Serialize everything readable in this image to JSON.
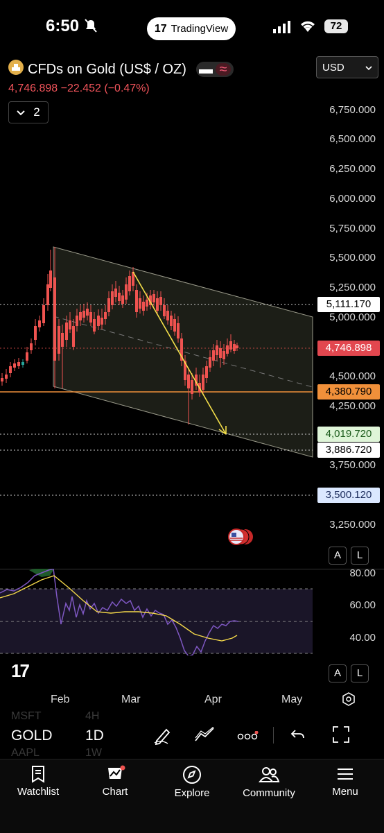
{
  "status_bar": {
    "time": "6:50",
    "battery": "72"
  },
  "brand_pill": {
    "label": "TradingView"
  },
  "symbol": {
    "name": "CFDs on Gold (US$ / OZ)",
    "price": "4,746.898",
    "change": "−22.452",
    "change_pct": "(−0.47%)",
    "indicator_count": "2"
  },
  "currency": {
    "selected": "USD"
  },
  "price_axis": [
    "6,750.000",
    "6,500.000",
    "6,250.000",
    "6,000.000",
    "5,750.000",
    "5,500.000",
    "5,250.000",
    "5,000.000",
    "4,500.000",
    "4,250.000",
    "3,750.000",
    "3,250.000"
  ],
  "price_tags": {
    "t1": "5,111.170",
    "current": "4,746.898",
    "support": "4,380.790",
    "target": "4,019.720",
    "t5": "3,886.720",
    "t6": "3,500.120"
  },
  "rsi_axis": [
    "80.00",
    "60.00",
    "40.00"
  ],
  "months": [
    "Feb",
    "Mar",
    "Apr",
    "May"
  ],
  "al": {
    "a": "A",
    "l": "L"
  },
  "toolbar": {
    "ticker": "GOLD",
    "timeframe": "1D",
    "ghost1": "MSFT",
    "ghost2": "4H",
    "ghost3": "AAPL",
    "ghost4": "1W"
  },
  "nav": {
    "watchlist": "Watchlist",
    "chart": "Chart",
    "explore": "Explore",
    "community": "Community",
    "menu": "Menu"
  },
  "colors": {
    "up": "#26a69a",
    "down": "#ef5350",
    "orange": "#f0903a",
    "yellow": "#f5e04a",
    "rsi": "#7e57c2"
  }
}
